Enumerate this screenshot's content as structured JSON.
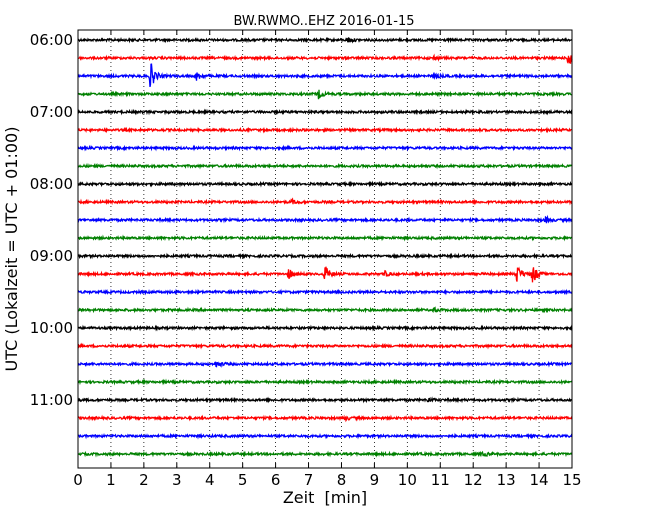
{
  "chart_data": {
    "type": "line",
    "title": "BW.RWMO..EHZ 2016-01-15",
    "xlabel": "Zeit  [min]",
    "ylabel": "UTC (Lokalzeit = UTC + 01:00)",
    "xlim": [
      0,
      15
    ],
    "x_ticks": [
      "0",
      "1",
      "2",
      "3",
      "4",
      "5",
      "6",
      "7",
      "8",
      "9",
      "10",
      "11",
      "12",
      "13",
      "14",
      "15"
    ],
    "y_tick_labels": [
      "06:00",
      "07:00",
      "08:00",
      "09:00",
      "10:00",
      "11:00"
    ],
    "grid": "vertical dotted",
    "trace_colors": [
      "#000000",
      "#ff0000",
      "#0000ff",
      "#008000"
    ],
    "traces": [
      {
        "start": "06:00",
        "color": "#000000",
        "events": [
          {
            "t": 8.2,
            "amp": 0.2
          }
        ]
      },
      {
        "start": "06:15",
        "color": "#ff0000",
        "events": [
          {
            "t": 14.9,
            "amp": 1.0
          },
          {
            "t": 10.8,
            "amp": 0.15
          }
        ]
      },
      {
        "start": "06:30",
        "color": "#0000ff",
        "events": [
          {
            "t": 2.2,
            "amp": 1.0
          },
          {
            "t": 3.6,
            "amp": 0.3
          },
          {
            "t": 10.8,
            "amp": 0.2
          }
        ]
      },
      {
        "start": "06:45",
        "color": "#008000",
        "events": [
          {
            "t": 7.3,
            "amp": 0.3
          }
        ]
      },
      {
        "start": "07:00",
        "color": "#000000",
        "events": []
      },
      {
        "start": "07:15",
        "color": "#ff0000",
        "events": []
      },
      {
        "start": "07:30",
        "color": "#0000ff",
        "events": []
      },
      {
        "start": "07:45",
        "color": "#008000",
        "events": []
      },
      {
        "start": "08:00",
        "color": "#000000",
        "events": []
      },
      {
        "start": "08:15",
        "color": "#ff0000",
        "events": [
          {
            "t": 6.5,
            "amp": 0.15
          }
        ]
      },
      {
        "start": "08:30",
        "color": "#0000ff",
        "events": [
          {
            "t": 14.2,
            "amp": 0.2
          }
        ]
      },
      {
        "start": "08:45",
        "color": "#008000",
        "events": []
      },
      {
        "start": "09:00",
        "color": "#000000",
        "events": []
      },
      {
        "start": "09:15",
        "color": "#ff0000",
        "events": [
          {
            "t": 6.4,
            "amp": 0.35
          },
          {
            "t": 7.5,
            "amp": 0.6
          },
          {
            "t": 9.3,
            "amp": 0.2
          },
          {
            "t": 13.3,
            "amp": 0.8
          },
          {
            "t": 13.8,
            "amp": 0.7
          }
        ]
      },
      {
        "start": "09:30",
        "color": "#0000ff",
        "events": []
      },
      {
        "start": "09:45",
        "color": "#008000",
        "events": [
          {
            "t": 10.8,
            "amp": 0.15
          }
        ]
      },
      {
        "start": "10:00",
        "color": "#000000",
        "events": []
      },
      {
        "start": "10:15",
        "color": "#ff0000",
        "events": []
      },
      {
        "start": "10:30",
        "color": "#0000ff",
        "events": [
          {
            "t": 4.2,
            "amp": 0.25
          }
        ]
      },
      {
        "start": "10:45",
        "color": "#008000",
        "events": []
      },
      {
        "start": "11:00",
        "color": "#000000",
        "events": [
          {
            "t": 10.6,
            "amp": 0.15
          }
        ]
      },
      {
        "start": "11:15",
        "color": "#ff0000",
        "events": [
          {
            "t": 8.1,
            "amp": 0.15
          }
        ]
      },
      {
        "start": "11:30",
        "color": "#0000ff",
        "events": []
      },
      {
        "start": "11:45",
        "color": "#008000",
        "events": [
          {
            "t": 12.3,
            "amp": 0.15
          }
        ]
      }
    ]
  }
}
